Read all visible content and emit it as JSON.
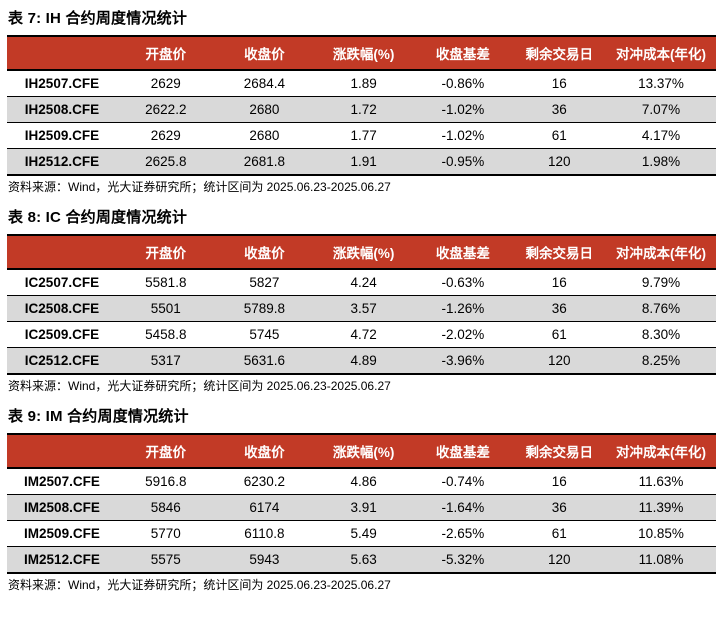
{
  "colors": {
    "header_bg": "#C23A26",
    "header_text": "#FFFFFF",
    "stripe_row_bg": "#D9D9D9",
    "rule_line": "#000000"
  },
  "tables": [
    {
      "title": "表 7: IH 合约周度情况统计",
      "headers": [
        "",
        "开盘价",
        "收盘价",
        "涨跌幅(%)",
        "收盘基差",
        "剩余交易日",
        "对冲成本(年化)"
      ],
      "rows": [
        [
          "IH2507.CFE",
          "2629",
          "2684.4",
          "1.89",
          "-0.86%",
          "16",
          "13.37%"
        ],
        [
          "IH2508.CFE",
          "2622.2",
          "2680",
          "1.72",
          "-1.02%",
          "36",
          "7.07%"
        ],
        [
          "IH2509.CFE",
          "2629",
          "2680",
          "1.77",
          "-1.02%",
          "61",
          "4.17%"
        ],
        [
          "IH2512.CFE",
          "2625.8",
          "2681.8",
          "1.91",
          "-0.95%",
          "120",
          "1.98%"
        ]
      ],
      "source": "资料来源：Wind，光大证券研究所；统计区间为 2025.06.23-2025.06.27"
    },
    {
      "title": "表 8: IC 合约周度情况统计",
      "headers": [
        "",
        "开盘价",
        "收盘价",
        "涨跌幅(%)",
        "收盘基差",
        "剩余交易日",
        "对冲成本(年化)"
      ],
      "rows": [
        [
          "IC2507.CFE",
          "5581.8",
          "5827",
          "4.24",
          "-0.63%",
          "16",
          "9.79%"
        ],
        [
          "IC2508.CFE",
          "5501",
          "5789.8",
          "3.57",
          "-1.26%",
          "36",
          "8.76%"
        ],
        [
          "IC2509.CFE",
          "5458.8",
          "5745",
          "4.72",
          "-2.02%",
          "61",
          "8.30%"
        ],
        [
          "IC2512.CFE",
          "5317",
          "5631.6",
          "4.89",
          "-3.96%",
          "120",
          "8.25%"
        ]
      ],
      "source": "资料来源：Wind，光大证券研究所；统计区间为 2025.06.23-2025.06.27"
    },
    {
      "title": "表 9: IM 合约周度情况统计",
      "headers": [
        "",
        "开盘价",
        "收盘价",
        "涨跌幅(%)",
        "收盘基差",
        "剩余交易日",
        "对冲成本(年化)"
      ],
      "rows": [
        [
          "IM2507.CFE",
          "5916.8",
          "6230.2",
          "4.86",
          "-0.74%",
          "16",
          "11.63%"
        ],
        [
          "IM2508.CFE",
          "5846",
          "6174",
          "3.91",
          "-1.64%",
          "36",
          "11.39%"
        ],
        [
          "IM2509.CFE",
          "5770",
          "6110.8",
          "5.49",
          "-2.65%",
          "61",
          "10.85%"
        ],
        [
          "IM2512.CFE",
          "5575",
          "5943",
          "5.63",
          "-5.32%",
          "120",
          "11.08%"
        ]
      ],
      "source": "资料来源：Wind，光大证券研究所；统计区间为 2025.06.23-2025.06.27"
    }
  ]
}
